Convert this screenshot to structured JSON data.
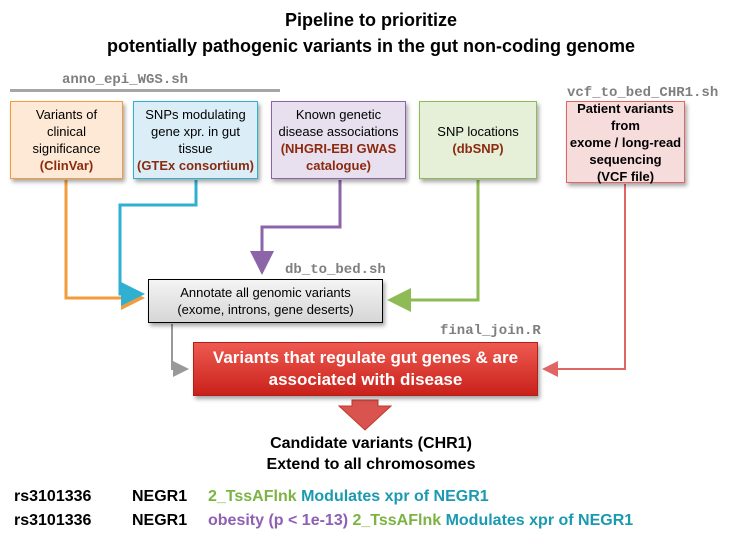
{
  "title": {
    "line1": "Pipeline to prioritize",
    "line2": "potentially pathogenic variants in the gut non-coding genome"
  },
  "scripts": {
    "anno_epi": "anno_epi_WGS.sh",
    "vcf_to_bed": "vcf_to_bed_CHR1.sh",
    "db_to_bed": "db_to_bed.sh",
    "final_join": "final_join.R"
  },
  "sources": [
    {
      "lines": [
        "Variants of",
        "clinical",
        "significance"
      ],
      "highlight": "(ClinVar)"
    },
    {
      "lines": [
        "SNPs modulating",
        "gene xpr. in gut",
        "tissue"
      ],
      "highlight": "(GTEx consortium)"
    },
    {
      "lines": [
        "Known genetic",
        "disease associations"
      ],
      "highlight": "(NHGRI-EBI GWAS",
      "highlight2": "catalogue)"
    },
    {
      "lines": [
        "SNP locations"
      ],
      "highlight": "(dbSNP)"
    },
    {
      "lines": [
        "Patient variants from",
        "exome / long-read",
        "sequencing",
        "(VCF file)"
      ]
    }
  ],
  "annotate": {
    "line1": "Annotate all genomic variants",
    "line2": "(exome, introns, gene deserts)"
  },
  "regulate": {
    "line1": "Variants that regulate gut genes & are",
    "line2": "associated with disease"
  },
  "candidate": {
    "line1": "Candidate variants (CHR1)",
    "line2": "Extend to all chromosomes"
  },
  "results": [
    {
      "id": "rs3101336",
      "gene": "NEGR1",
      "state": "2_TssAFlnk",
      "effect": "Modulates xpr of NEGR1"
    },
    {
      "id": "rs3101336",
      "gene": "NEGR1",
      "trait": "obesity (p < 1e-13)",
      "state": "2_TssAFlnk",
      "effect": "Modulates xpr of NEGR1"
    }
  ],
  "colors": {
    "clinvar": "#f39c3c",
    "gtex": "#2fb0d0",
    "gwas": "#8c64a8",
    "dbsnp": "#8fbb57",
    "patient": "#e06666",
    "main": "#d9342b",
    "highlight_text": "#8b2a0f"
  }
}
